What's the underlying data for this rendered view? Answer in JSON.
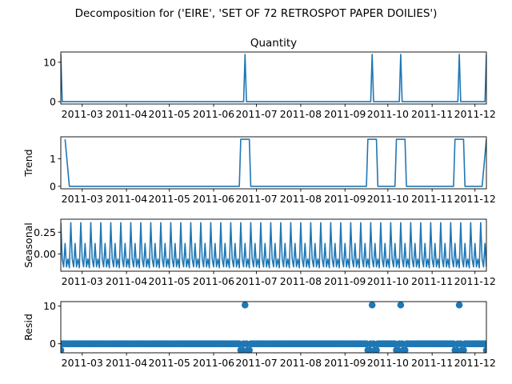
{
  "chart_data": {
    "type": "line",
    "suptitle": "Decomposition for ('EIRE', 'SET OF 72 RETROSPOT PAPER  DOILIES')",
    "x_range": [
      "2011-02-14",
      "2011-12-09"
    ],
    "x_ticks": [
      "2011-03",
      "2011-04",
      "2011-05",
      "2011-06",
      "2011-07",
      "2011-08",
      "2011-09",
      "2011-10",
      "2011-11",
      "2011-12"
    ],
    "panels": [
      {
        "key": "observed",
        "title": "Quantity",
        "ylabel": "",
        "style": "line",
        "ylim": [
          -0.6,
          12.6
        ],
        "yticks": [
          0,
          10
        ],
        "baseline": 0,
        "events": [
          {
            "date": "2011-02-14",
            "value": 12
          },
          {
            "date": "2011-06-23",
            "value": 12
          },
          {
            "date": "2011-09-20",
            "value": 12
          },
          {
            "date": "2011-10-10",
            "value": 12
          },
          {
            "date": "2011-11-20",
            "value": 12
          },
          {
            "date": "2011-12-09",
            "value": 12
          }
        ]
      },
      {
        "key": "trend",
        "title": "",
        "ylabel": "Trend",
        "style": "line",
        "ylim": [
          -0.09,
          1.8
        ],
        "yticks": [
          0,
          1
        ],
        "baseline": 0,
        "plateau_value": 1.71,
        "plateaus": [
          [
            "2011-06-20",
            "2011-06-26"
          ],
          [
            "2011-09-17",
            "2011-09-23"
          ],
          [
            "2011-10-07",
            "2011-10-13"
          ],
          [
            "2011-11-17",
            "2011-11-23"
          ]
        ],
        "segments": [
          {
            "dates": [
              "2011-02-17",
              "2011-02-20"
            ],
            "values": [
              1.71,
              0
            ]
          },
          {
            "dates": [
              "2011-12-06",
              "2011-12-09"
            ],
            "values": [
              0,
              1.71
            ]
          }
        ]
      },
      {
        "key": "seasonal",
        "title": "",
        "ylabel": "Seasonal",
        "style": "line",
        "ylim": [
          -0.2,
          0.4
        ],
        "yticks": [
          0.0,
          0.25
        ],
        "period_days": 7,
        "weekly_pattern": [
          0.36,
          -0.06,
          -0.15,
          0.12,
          -0.15,
          -0.06,
          -0.16
        ]
      },
      {
        "key": "resid",
        "title": "",
        "ylabel": "Resid",
        "style": "scatter",
        "ylim": [
          -2.4,
          11.2
        ],
        "yticks": [
          0,
          10
        ],
        "baseline": 0,
        "outliers": [
          {
            "date": "2011-02-14",
            "value": -1.7
          },
          {
            "date": "2011-06-20",
            "value": -1.7
          },
          {
            "date": "2011-06-21",
            "value": -1.7
          },
          {
            "date": "2011-06-23",
            "value": 10.3
          },
          {
            "date": "2011-06-25",
            "value": -1.7
          },
          {
            "date": "2011-06-26",
            "value": -1.7
          },
          {
            "date": "2011-09-17",
            "value": -1.7
          },
          {
            "date": "2011-09-18",
            "value": -1.7
          },
          {
            "date": "2011-09-20",
            "value": 10.3
          },
          {
            "date": "2011-09-22",
            "value": -1.7
          },
          {
            "date": "2011-09-23",
            "value": -1.7
          },
          {
            "date": "2011-10-07",
            "value": -1.7
          },
          {
            "date": "2011-10-08",
            "value": -1.7
          },
          {
            "date": "2011-10-10",
            "value": 10.3
          },
          {
            "date": "2011-10-12",
            "value": -1.7
          },
          {
            "date": "2011-10-13",
            "value": -1.7
          },
          {
            "date": "2011-11-17",
            "value": -1.7
          },
          {
            "date": "2011-11-18",
            "value": -1.7
          },
          {
            "date": "2011-11-20",
            "value": 10.3
          },
          {
            "date": "2011-11-22",
            "value": -1.7
          },
          {
            "date": "2011-11-23",
            "value": -1.7
          },
          {
            "date": "2011-12-09",
            "value": -1.7
          }
        ]
      }
    ],
    "grid": false,
    "legend": "none",
    "series_color": "#1f77b4"
  }
}
